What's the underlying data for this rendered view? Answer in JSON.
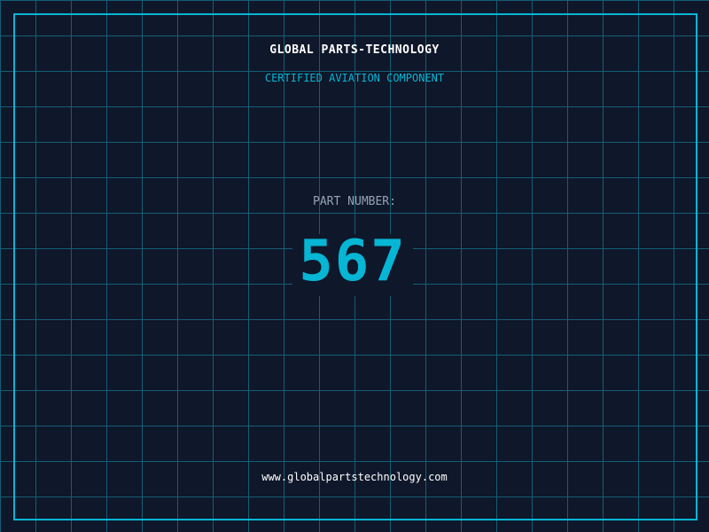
{
  "colors": {
    "background": "#0f172a",
    "grid": "#155e75",
    "accent": "#06b6d4"
  },
  "header": {
    "brand": "GLOBAL PARTS-TECHNOLOGY",
    "subtitle": "CERTIFIED AVIATION COMPONENT"
  },
  "part": {
    "label": "PART NUMBER:",
    "number": "567"
  },
  "footer": {
    "url": "www.globalpartstechnology.com"
  }
}
